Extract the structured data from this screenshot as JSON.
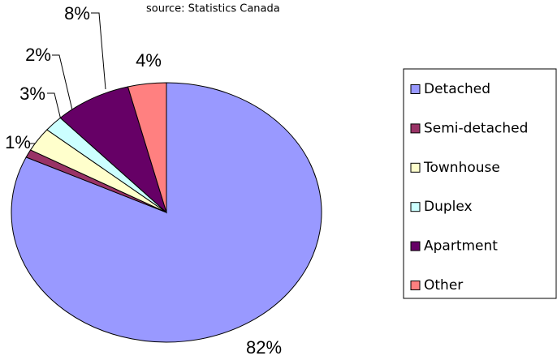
{
  "chart_data": {
    "type": "pie",
    "subtitle": "source:  Statistics Canada",
    "categories": [
      "Detached",
      "Semi-detached",
      "Townhouse",
      "Duplex",
      "Apartment",
      "Other"
    ],
    "values": [
      82,
      1,
      3,
      2,
      8,
      4
    ],
    "value_labels": [
      "82%",
      "1%",
      "3%",
      "2%",
      "8%",
      "4%"
    ],
    "colors": [
      "#9999ff",
      "#993366",
      "#ffffcc",
      "#ccffff",
      "#660066",
      "#ff8080"
    ],
    "legend": "right"
  }
}
